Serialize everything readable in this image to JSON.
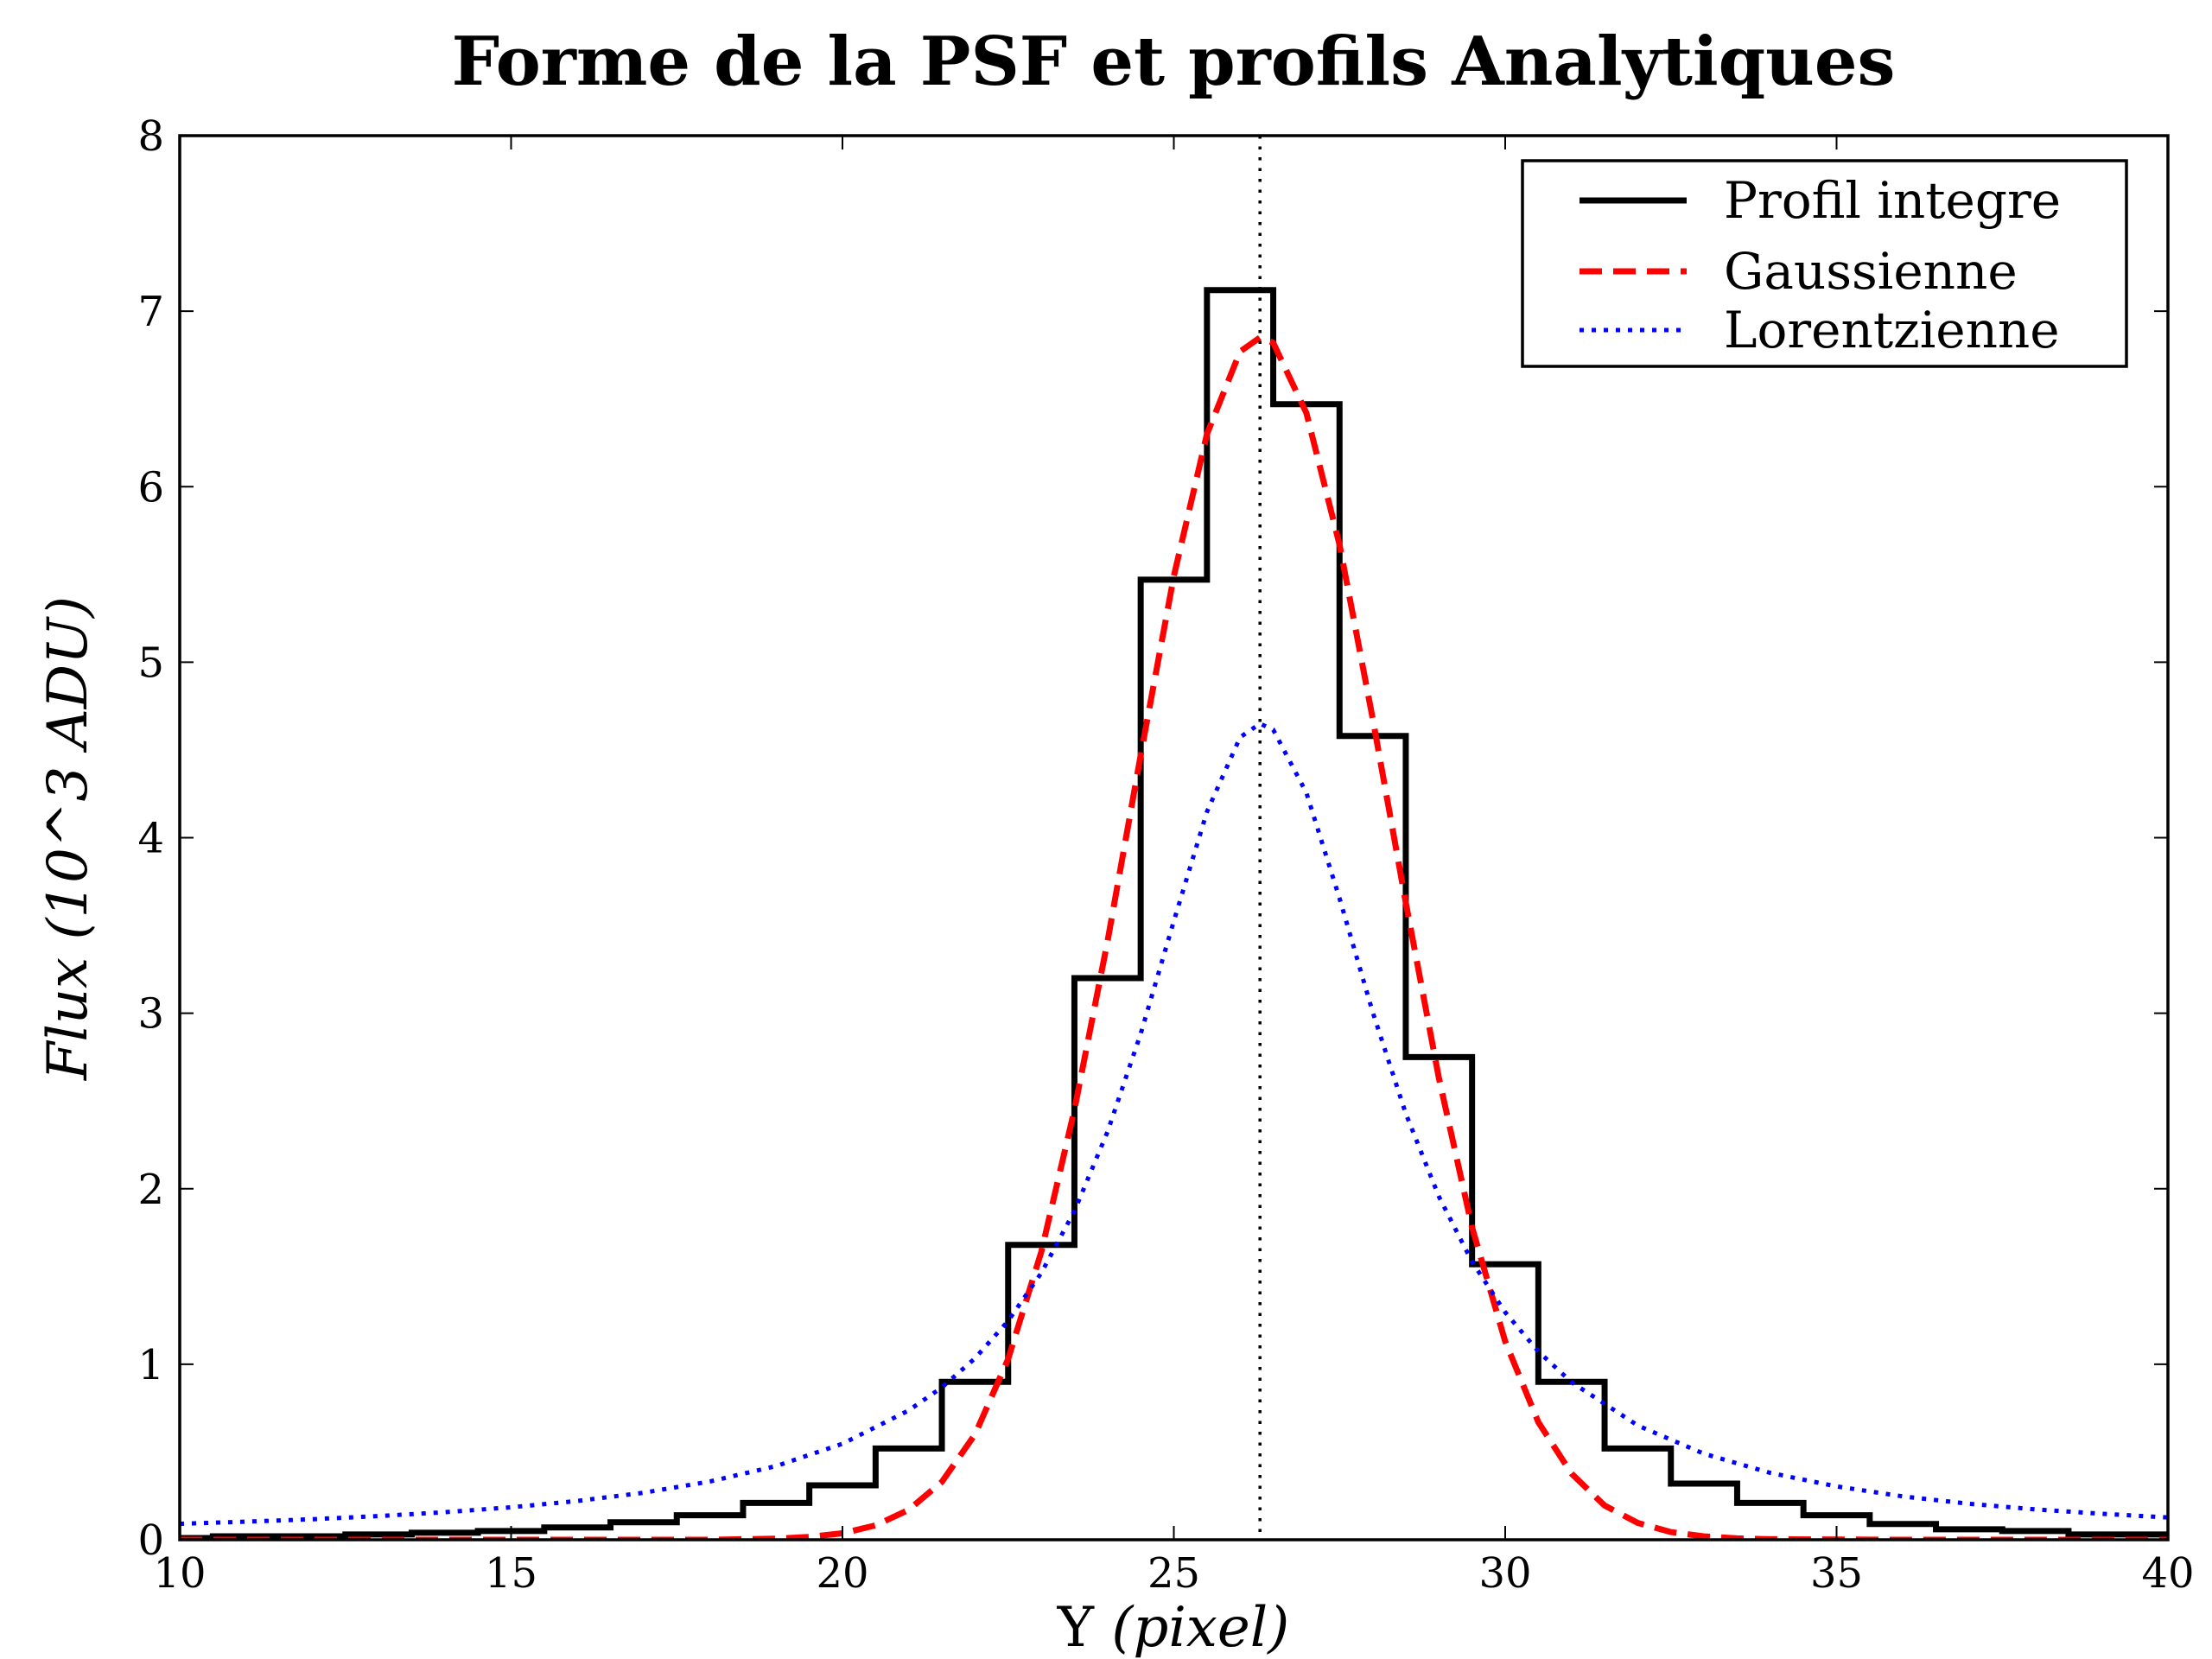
{
  "chart_data": {
    "type": "line",
    "title": "Forme de la PSF et profils Analytiques",
    "xlabel": "Y (pixel)",
    "ylabel": "Flux (10^3 ADU)",
    "xlim": [
      10,
      40
    ],
    "ylim": [
      0,
      8
    ],
    "xticks": [
      10,
      15,
      20,
      25,
      30,
      35,
      40
    ],
    "yticks": [
      0,
      1,
      2,
      3,
      4,
      5,
      6,
      7,
      8
    ],
    "grid": false,
    "legend_position": "top-right",
    "vline_x": 26.3,
    "series": [
      {
        "name": "Profil integre",
        "style": "step",
        "color": "#000000",
        "x": [
          10,
          11,
          12,
          13,
          14,
          15,
          16,
          17,
          18,
          19,
          20,
          21,
          22,
          23,
          24,
          25,
          26,
          27,
          28,
          29,
          30,
          31,
          32,
          33,
          34,
          35,
          36,
          37,
          38,
          39,
          40
        ],
        "y": [
          0.01,
          0.02,
          0.02,
          0.03,
          0.04,
          0.05,
          0.07,
          0.1,
          0.14,
          0.21,
          0.31,
          0.52,
          0.9,
          1.68,
          3.2,
          5.47,
          7.12,
          6.47,
          4.58,
          2.75,
          1.57,
          0.9,
          0.52,
          0.32,
          0.21,
          0.14,
          0.09,
          0.06,
          0.05,
          0.03,
          0.03
        ]
      },
      {
        "name": "Gaussienne",
        "style": "dashed",
        "color": "#ff0000",
        "x": [
          10,
          12,
          14,
          16,
          18,
          19,
          19.5,
          20,
          20.5,
          21,
          21.5,
          22,
          22.5,
          23,
          23.5,
          24,
          24.5,
          25,
          25.5,
          26,
          26.3,
          26.5,
          27,
          27.5,
          28,
          28.5,
          29,
          29.5,
          30,
          30.5,
          31,
          31.5,
          32,
          32.5,
          33,
          33.5,
          34,
          36,
          38,
          40
        ],
        "y": [
          0,
          0,
          0,
          0,
          0,
          0.006,
          0.016,
          0.037,
          0.082,
          0.171,
          0.33,
          0.6,
          1.03,
          1.64,
          2.45,
          3.41,
          4.47,
          5.49,
          6.3,
          6.77,
          6.85,
          6.82,
          6.42,
          5.67,
          4.68,
          3.63,
          2.63,
          1.78,
          1.13,
          0.67,
          0.377,
          0.195,
          0.096,
          0.044,
          0.019,
          0.008,
          0.003,
          0,
          0,
          0
        ]
      },
      {
        "name": "Lorentzienne",
        "style": "dotted",
        "color": "#0000ff",
        "x": [
          10,
          11,
          12,
          13,
          14,
          15,
          16,
          17,
          18,
          19,
          20,
          21,
          21.5,
          22,
          22.5,
          23,
          23.5,
          24,
          24.5,
          25,
          25.5,
          26,
          26.3,
          26.5,
          27,
          27.5,
          28,
          28.5,
          29,
          29.5,
          30,
          30.5,
          31,
          32,
          33,
          34,
          35,
          36,
          37,
          38,
          39,
          40
        ],
        "y": [
          0.091,
          0.103,
          0.117,
          0.135,
          0.157,
          0.185,
          0.221,
          0.268,
          0.332,
          0.42,
          0.547,
          0.737,
          0.868,
          1.034,
          1.247,
          1.52,
          1.873,
          2.325,
          2.883,
          3.525,
          4.148,
          4.572,
          4.65,
          4.615,
          4.256,
          3.655,
          3.007,
          2.428,
          1.955,
          1.584,
          1.296,
          1.073,
          0.898,
          0.651,
          0.49,
          0.381,
          0.304,
          0.247,
          0.205,
          0.173,
          0.148,
          0.127
        ]
      }
    ]
  }
}
